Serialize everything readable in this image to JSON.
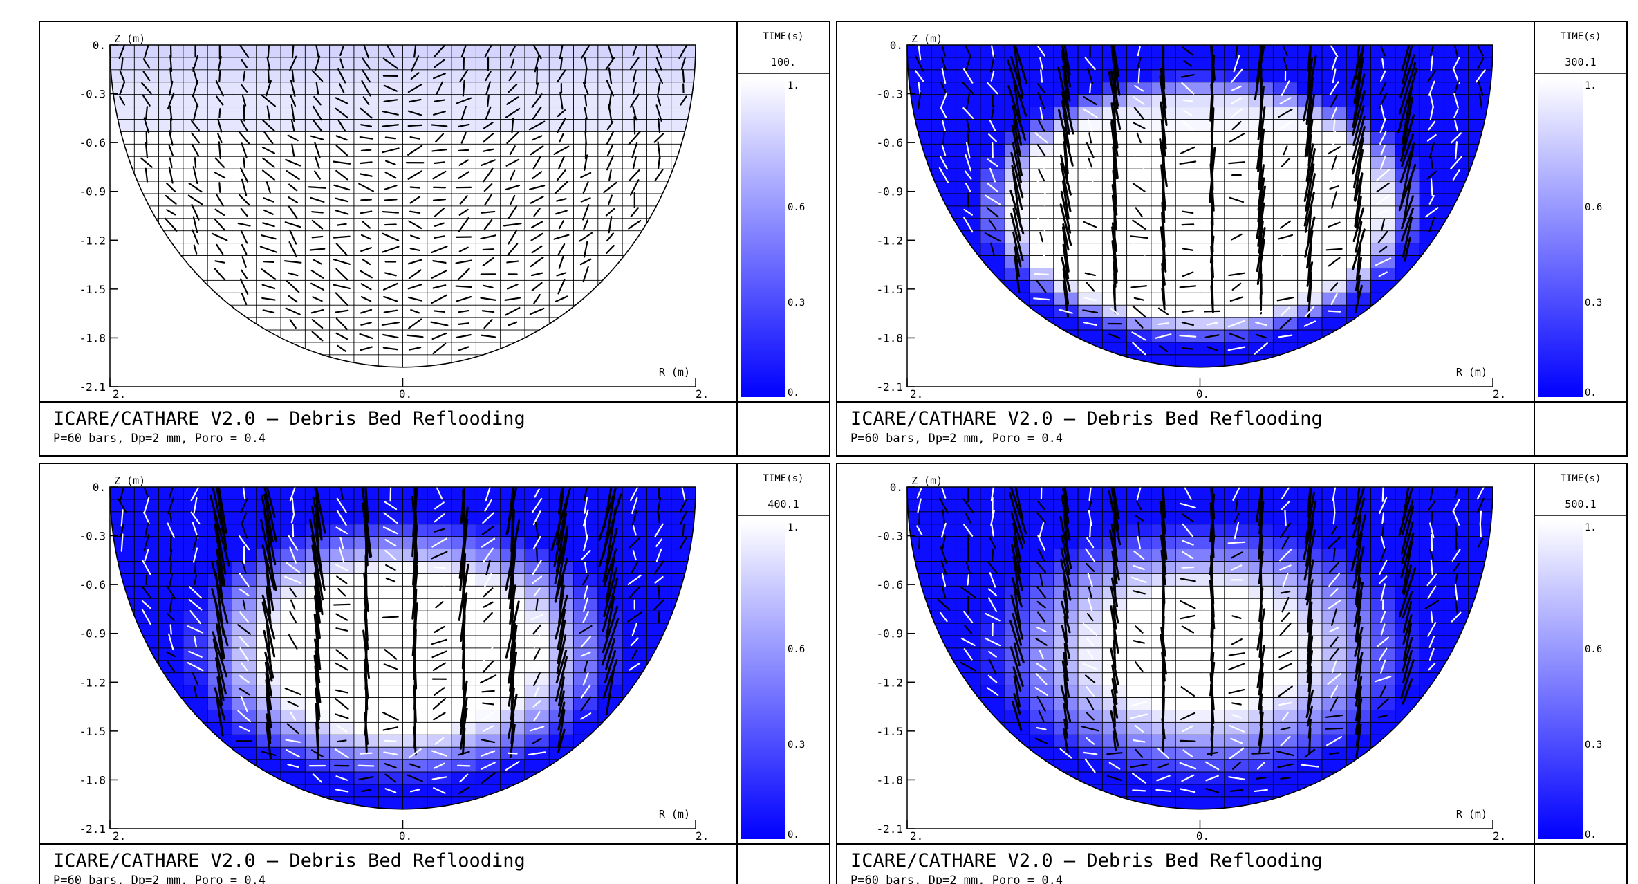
{
  "figure": {
    "panels": [
      {
        "time_header": "TIME(s)",
        "time_value": "100.",
        "title": "ICARE/CATHARE V2.0 — Debris Bed Reflooding",
        "subtitle": "P=60 bars, Dp=2 mm, Poro = 0.4",
        "colorbar_ticks": [
          "1.",
          "0.6",
          "0.3",
          "0."
        ],
        "field_profile": {
          "type": "surface-band",
          "front_depth": 0.55,
          "max_fraction": 0.18
        },
        "arrow_magnitude": 0.25
      },
      {
        "time_header": "TIME(s)",
        "time_value": "300.1",
        "title": "ICARE/CATHARE V2.0 — Debris Bed Reflooding",
        "subtitle": "P=60 bars, Dp=2 mm, Poro = 0.4",
        "colorbar_ticks": [
          "1.",
          "0.6",
          "0.3",
          "0."
        ],
        "field_profile": {
          "type": "wet-rim",
          "dry_core_radius": 0.8
        },
        "arrow_magnitude": 0.75
      },
      {
        "time_header": "TIME(s)",
        "time_value": "400.1",
        "title": "ICARE/CATHARE V2.0 — Debris Bed Reflooding",
        "subtitle": "P=60 bars, Dp=2 mm, Poro = 0.4",
        "colorbar_ticks": [
          "1.",
          "0.6",
          "0.3",
          "0."
        ],
        "field_profile": {
          "type": "wet-rim",
          "dry_core_radius": 0.6
        },
        "arrow_magnitude": 0.85
      },
      {
        "time_header": "TIME(s)",
        "time_value": "500.1",
        "title": "ICARE/CATHARE V2.0 — Debris Bed Reflooding",
        "subtitle": "P=60 bars, Dp=2 mm, Poro = 0.4",
        "colorbar_ticks": [
          "1.",
          "0.6",
          "0.3",
          "0."
        ],
        "field_profile": {
          "type": "wet-rim",
          "dry_core_radius": 0.45
        },
        "arrow_magnitude": 0.6
      }
    ]
  },
  "chart_data": {
    "type": "heatmap",
    "panel_count": 4,
    "x_axis": {
      "label": "R (m)",
      "ticks": [
        "2.",
        "0.",
        "2."
      ],
      "range": [
        -2,
        2
      ]
    },
    "y_axis": {
      "label": "Z (m)",
      "ticks": [
        "0.",
        "-0.3",
        "-0.6",
        "-0.9",
        "-1.2",
        "-1.5",
        "-1.8",
        "-2.1"
      ],
      "range": [
        -2.1,
        0
      ]
    },
    "colorbar": {
      "range": [
        0,
        1
      ],
      "low_color": "#0000ff",
      "high_color": "#ffffff"
    },
    "times_s": [
      100.0,
      300.1,
      400.1,
      500.1
    ],
    "grid": {
      "columns": 24,
      "rows": 26
    },
    "domain_shape": "hemispherical bowl",
    "vector_color": "#000000",
    "secondary_vector_color": "#ffffff"
  }
}
